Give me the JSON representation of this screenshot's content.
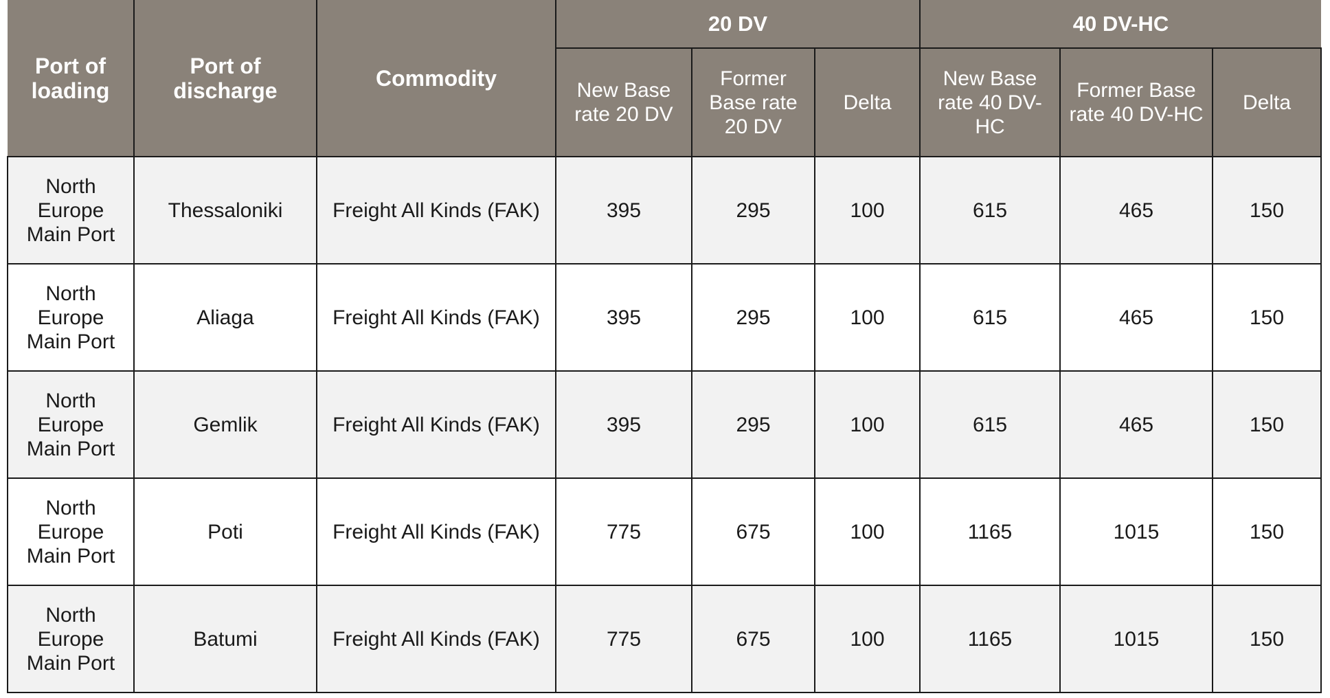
{
  "table": {
    "headers": {
      "port_of_loading": "Port of loading",
      "port_of_discharge": "Port of discharge",
      "commodity": "Commodity",
      "group_20": "20 DV",
      "group_40": "40 DV-HC",
      "new_base_20": "New Base rate 20 DV",
      "former_base_20": "Former Base rate 20 DV",
      "delta_20": "Delta",
      "new_base_40": "New Base rate 40 DV-HC",
      "former_base_40": "Former Base rate 40 DV-HC",
      "delta_40": "Delta"
    },
    "rows": [
      {
        "loading": "North Europe Main Port",
        "discharge": "Thessaloniki",
        "commodity": "Freight All Kinds (FAK)",
        "new20": "395",
        "former20": "295",
        "delta20": "100",
        "new40": "615",
        "former40": "465",
        "delta40": "150"
      },
      {
        "loading": "North Europe Main Port",
        "discharge": "Aliaga",
        "commodity": "Freight All Kinds (FAK)",
        "new20": "395",
        "former20": "295",
        "delta20": "100",
        "new40": "615",
        "former40": "465",
        "delta40": "150"
      },
      {
        "loading": "North Europe Main Port",
        "discharge": "Gemlik",
        "commodity": "Freight All Kinds (FAK)",
        "new20": "395",
        "former20": "295",
        "delta20": "100",
        "new40": "615",
        "former40": "465",
        "delta40": "150"
      },
      {
        "loading": "North Europe Main Port",
        "discharge": "Poti",
        "commodity": "Freight All Kinds (FAK)",
        "new20": "775",
        "former20": "675",
        "delta20": "100",
        "new40": "1165",
        "former40": "1015",
        "delta40": "150"
      },
      {
        "loading": "North Europe Main Port",
        "discharge": "Batumi",
        "commodity": "Freight All Kinds (FAK)",
        "new20": "775",
        "former20": "675",
        "delta20": "100",
        "new40": "1165",
        "former40": "1015",
        "delta40": "150"
      }
    ]
  },
  "colors": {
    "header_bg": "#8a8279",
    "header_text": "#ffffff",
    "row_odd_bg": "#f2f2f2",
    "row_even_bg": "#ffffff",
    "border": "#1a1a1a"
  }
}
